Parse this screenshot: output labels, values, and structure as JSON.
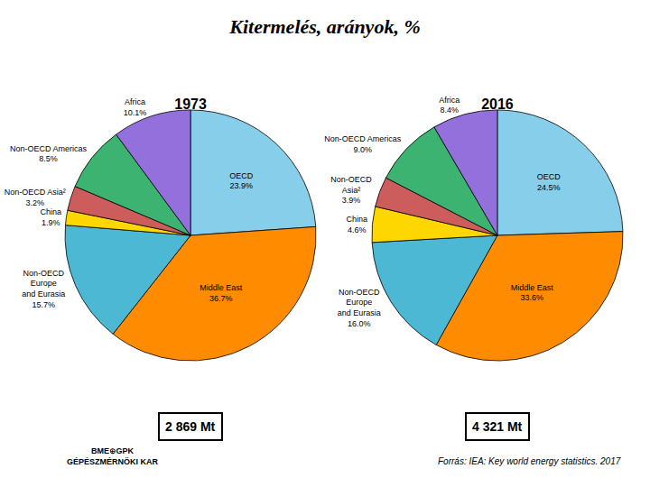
{
  "title": "Kitermelés, arányok, %",
  "chart_data": [
    {
      "type": "pie",
      "title": "1973",
      "categories": [
        "OECD",
        "Middle East",
        "Non-OECD\nEurope\nand Eurasia",
        "China",
        "Non-OECD Asia²",
        "Non-OECD Americas",
        "Africa"
      ],
      "values": [
        23.9,
        36.7,
        15.7,
        1.9,
        3.2,
        8.5,
        10.1
      ],
      "value_labels": [
        "23.9%",
        "36.7%",
        "15.7%",
        "1.9%",
        "3.2%",
        "8.5%",
        "10.1%"
      ],
      "colors": [
        "#87CEEB",
        "#FF8C00",
        "#4DB8D4",
        "#FFD700",
        "#CD5C5C",
        "#3CB371",
        "#9370DB"
      ],
      "annotations": [
        {
          "text": "2 869 Mt"
        }
      ]
    },
    {
      "type": "pie",
      "title": "2016",
      "categories": [
        "OECD",
        "Middle East",
        "Non-OECD\nEurope\nand Eurasia",
        "China",
        "Non-OECD\nAsia²",
        "Non-OECD Americas",
        "Africa"
      ],
      "values": [
        24.5,
        33.6,
        16.0,
        4.6,
        3.9,
        9.0,
        8.4
      ],
      "value_labels": [
        "24.5%",
        "33.6%",
        "16.0%",
        "4.6%",
        "3.9%",
        "9.0%",
        "8.4%"
      ],
      "colors": [
        "#87CEEB",
        "#FF8C00",
        "#4DB8D4",
        "#FFD700",
        "#CD5C5C",
        "#3CB371",
        "#9370DB"
      ],
      "annotations": [
        {
          "text": "4 321 Mt"
        }
      ]
    }
  ],
  "annotations": [
    {
      "text": "Forrás: IEA: Key world energy statistics. 2017"
    },
    {
      "text": "BME⊕GPK\nGÉPÉSZMÉRNÖKI KAR"
    }
  ]
}
